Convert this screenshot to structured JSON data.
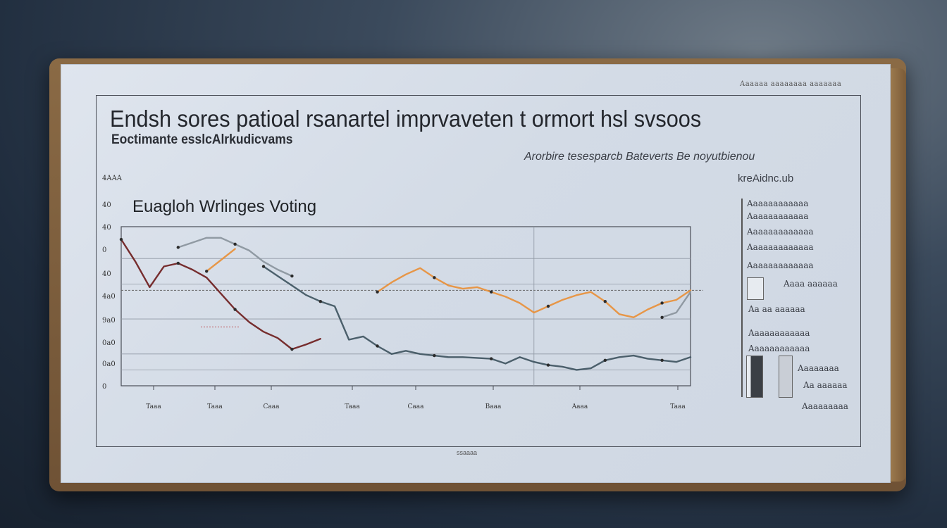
{
  "header": {
    "corner_note": "Aaaaaa aaaaaaaa aaaaaaa",
    "title": "Endsh  sores patioal rsanartel imprvaveten t ormort hsl svsoos",
    "subtitle": "Eoctimante esslcAlrkudicvams",
    "note": "Arorbire tesesparcb Bateverts Be noyutbienou",
    "note2": "kreAidnc.ub",
    "footer": "ssaaaa"
  },
  "legend": {
    "lines": [
      "Aaaaaaaaaaaa",
      "Aaaaaaaaaaaa",
      "Aaaaaaaaaaaaa",
      "Aaaaaaaaaaaaa",
      "Aaaaaaaaaaaaa",
      "Aaaa aaaaaa",
      "Aa  aa aaaaaa",
      "Aaaaaaaaaaaa",
      "Aaaaaaaaaaaa",
      "Aaaaaaaa",
      "Aa aaaaaa",
      "Aaaaaaaaa"
    ]
  },
  "colors": {
    "dark_red": "#6e1d1d",
    "red": "#c83a2e",
    "orange": "#e8903a",
    "slate": "#3f5561",
    "gray": "#8a949c",
    "axis": "#4a4e57"
  },
  "chart_data": {
    "type": "line",
    "title": "Euagloh Wrlinges  Voting",
    "xlabel": "",
    "ylabel": "",
    "y_tick_labels": [
      "4AAA",
      "40",
      "40",
      "0",
      "40",
      "4a0",
      "9a0",
      "0a0",
      "0a0",
      "0"
    ],
    "x_tick_labels": [
      "Taaa",
      "Taaa",
      "Caaa",
      "Taaa",
      "Caaa",
      "Baaa",
      "Aaaa",
      "Taaa"
    ],
    "x": [
      0,
      1,
      2,
      3,
      4,
      5,
      6,
      7,
      8,
      9,
      10,
      11,
      12,
      13,
      14,
      15,
      16,
      17,
      18,
      19,
      20,
      21,
      22,
      23,
      24,
      25,
      26,
      27,
      28,
      29,
      30,
      31,
      32,
      33,
      34,
      35,
      36,
      37,
      38,
      39,
      40
    ],
    "series": [
      {
        "color_key": "dark_red",
        "values": [
          9.2,
          7.8,
          6.2,
          7.5,
          7.7,
          7.3,
          6.8,
          5.8,
          4.8,
          4.0,
          3.4,
          3.0,
          2.3,
          2.6,
          2.95,
          null,
          null,
          null,
          null,
          null,
          null,
          null,
          null,
          null,
          null,
          null,
          null,
          null,
          null,
          null,
          null,
          null,
          null,
          null,
          null,
          null,
          null,
          null,
          null,
          null,
          null
        ]
      },
      {
        "color_key": "orange",
        "values": [
          null,
          null,
          null,
          null,
          null,
          null,
          7.2,
          7.9,
          8.6,
          null,
          null,
          null,
          null,
          null,
          null,
          null,
          null,
          null,
          5.9,
          6.5,
          7.0,
          7.4,
          6.8,
          6.3,
          6.1,
          6.2,
          5.9,
          5.6,
          5.2,
          4.6,
          5.0,
          5.4,
          5.7,
          5.9,
          5.3,
          4.5,
          4.3,
          4.8,
          5.2,
          5.4,
          6.0
        ]
      },
      {
        "color_key": "slate",
        "values": [
          null,
          null,
          null,
          null,
          null,
          null,
          null,
          null,
          null,
          null,
          7.5,
          6.9,
          6.3,
          5.7,
          5.3,
          5.0,
          2.9,
          3.1,
          2.5,
          2.0,
          2.2,
          2.0,
          1.9,
          1.8,
          1.8,
          1.75,
          1.7,
          1.4,
          1.8,
          1.5,
          1.3,
          1.2,
          1.0,
          1.1,
          1.6,
          1.8,
          1.9,
          1.7,
          1.6,
          1.5,
          1.8
        ]
      },
      {
        "color_key": "gray",
        "values": [
          null,
          null,
          null,
          null,
          8.7,
          9.0,
          9.3,
          9.3,
          8.9,
          8.5,
          7.8,
          7.3,
          6.9,
          null,
          null,
          null,
          null,
          null,
          null,
          null,
          null,
          null,
          null,
          null,
          null,
          null,
          null,
          null,
          null,
          null,
          null,
          null,
          null,
          null,
          null,
          null,
          null,
          null,
          4.3,
          4.6,
          5.9
        ]
      }
    ],
    "reference_line": 6.0,
    "ylim": [
      0,
      10
    ]
  }
}
